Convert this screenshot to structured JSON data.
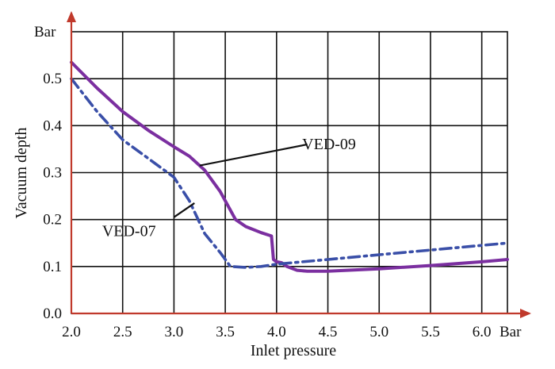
{
  "chart_data": {
    "type": "line",
    "title": "",
    "xlabel": "Inlet pressure",
    "ylabel": "Vacuum depth",
    "x_unit": "Bar",
    "y_unit": "Bar",
    "xlim": [
      2.0,
      6.25
    ],
    "ylim": [
      0.0,
      0.6
    ],
    "x_ticks": [
      "2.0",
      "2.5",
      "3.0",
      "3.5",
      "4.0",
      "4.5",
      "5.0",
      "5.5",
      "6.0"
    ],
    "y_ticks": [
      "0.0",
      "0.1",
      "0.2",
      "0.3",
      "0.4",
      "0.5"
    ],
    "grid": true,
    "legend": "none (series labelled directly with leader lines)",
    "axis_color": "#c0392b",
    "series": [
      {
        "name": "VED-09",
        "color": "#7b2fa0",
        "style": "solid",
        "x": [
          2.0,
          2.25,
          2.5,
          2.75,
          3.0,
          3.15,
          3.3,
          3.45,
          3.6,
          3.7,
          3.85,
          3.95,
          3.97,
          4.0,
          4.05,
          4.1,
          4.2,
          4.3,
          4.5,
          5.0,
          5.5,
          6.0,
          6.25
        ],
        "values": [
          0.535,
          0.48,
          0.43,
          0.39,
          0.355,
          0.335,
          0.305,
          0.26,
          0.2,
          0.185,
          0.172,
          0.165,
          0.115,
          0.11,
          0.108,
          0.1,
          0.092,
          0.09,
          0.09,
          0.095,
          0.102,
          0.11,
          0.115
        ]
      },
      {
        "name": "VED-07",
        "color": "#3a4fa8",
        "style": "dash-dot",
        "x": [
          2.0,
          2.25,
          2.5,
          2.75,
          3.0,
          3.15,
          3.3,
          3.45,
          3.55,
          3.7,
          3.85,
          4.0,
          4.5,
          5.0,
          5.5,
          6.0,
          6.25
        ],
        "values": [
          0.5,
          0.43,
          0.37,
          0.33,
          0.29,
          0.24,
          0.17,
          0.13,
          0.1,
          0.098,
          0.1,
          0.105,
          0.115,
          0.125,
          0.135,
          0.145,
          0.15
        ]
      }
    ],
    "annotations": [
      {
        "text": "VED-09",
        "x": 4.25,
        "y": 0.35
      },
      {
        "text": "VED-07",
        "x": 2.3,
        "y": 0.165
      }
    ]
  }
}
